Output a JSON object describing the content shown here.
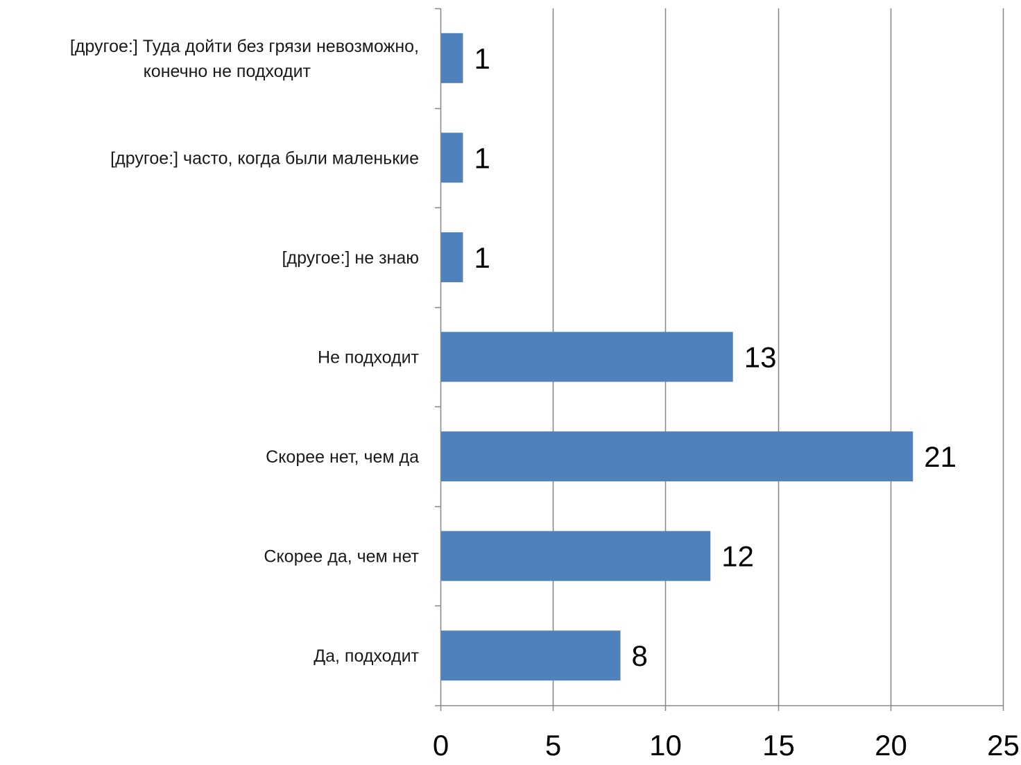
{
  "colors": {
    "bar": "#4F81BD",
    "grid": "#868686",
    "axis": "#868686",
    "text": "#000000",
    "background": "#FFFFFF"
  },
  "chart_data": {
    "type": "bar",
    "orientation": "horizontal",
    "categories": [
      "[другое:] Туда дойти без грязи невозможно, конечно не подходит",
      "[другое:] часто, когда были маленькие",
      "[другое:] не знаю",
      "Не подходит",
      "Скорее нет, чем да",
      "Скорее да, чем нет",
      "Да, подходит"
    ],
    "category_label_lines": [
      [
        "[другое:] Туда дойти без грязи невозможно,",
        "конечно не подходит"
      ],
      [
        "[другое:] часто, когда были маленькие"
      ],
      [
        "[другое:] не знаю"
      ],
      [
        "Не подходит"
      ],
      [
        "Скорее нет, чем да"
      ],
      [
        "Скорее да, чем нет"
      ],
      [
        "Да, подходит"
      ]
    ],
    "values": [
      1,
      1,
      1,
      13,
      21,
      12,
      8
    ],
    "data_labels": [
      "1",
      "1",
      "1",
      "13",
      "21",
      "12",
      "8"
    ],
    "xlim": [
      0,
      25
    ],
    "xticks": [
      0,
      5,
      10,
      15,
      20,
      25
    ],
    "xtick_labels": [
      "0",
      "5",
      "10",
      "15",
      "20",
      "25"
    ],
    "title": "",
    "xlabel": "",
    "ylabel": "",
    "grid": "vertical",
    "legend": "none"
  }
}
